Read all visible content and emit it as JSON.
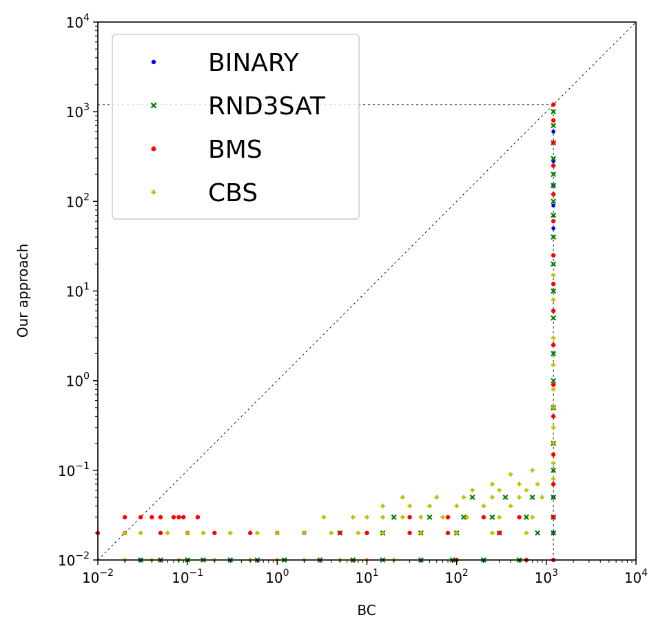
{
  "chart_data": {
    "type": "scatter",
    "title": "",
    "xlabel": "BC",
    "ylabel": "Our approach",
    "xscale": "log",
    "yscale": "log",
    "xlim": [
      0.01,
      10000
    ],
    "ylim": [
      0.01,
      10000
    ],
    "x_ticks": [
      {
        "base": "10",
        "exp": "−2"
      },
      {
        "base": "10",
        "exp": "−1"
      },
      {
        "base": "10",
        "exp": "0"
      },
      {
        "base": "10",
        "exp": "1"
      },
      {
        "base": "10",
        "exp": "2"
      },
      {
        "base": "10",
        "exp": "3"
      },
      {
        "base": "10",
        "exp": "4"
      }
    ],
    "y_ticks": [
      {
        "base": "10",
        "exp": "−2"
      },
      {
        "base": "10",
        "exp": "−1"
      },
      {
        "base": "10",
        "exp": "0"
      },
      {
        "base": "10",
        "exp": "1"
      },
      {
        "base": "10",
        "exp": "2"
      },
      {
        "base": "10",
        "exp": "3"
      },
      {
        "base": "10",
        "exp": "4"
      }
    ],
    "grid": false,
    "legend_position": "top-left",
    "timeout": 1200,
    "series": [
      {
        "name": "BINARY",
        "color": "#0000ff",
        "marker": "dot",
        "points": [
          [
            1200,
            1200
          ],
          [
            1200,
            600
          ],
          [
            1200,
            280
          ],
          [
            1200,
            150
          ],
          [
            1200,
            90
          ],
          [
            1200,
            50
          ],
          [
            1200,
            0.05
          ],
          [
            1200,
            0.03
          ],
          [
            1200,
            0.02
          ]
        ]
      },
      {
        "name": "RND3SAT",
        "color": "#008000",
        "marker": "x",
        "points": [
          [
            0.03,
            0.01
          ],
          [
            0.05,
            0.01
          ],
          [
            0.1,
            0.01
          ],
          [
            0.15,
            0.01
          ],
          [
            0.3,
            0.01
          ],
          [
            0.6,
            0.01
          ],
          [
            1.2,
            0.01
          ],
          [
            3,
            0.01
          ],
          [
            7,
            0.01
          ],
          [
            15,
            0.01
          ],
          [
            40,
            0.01
          ],
          [
            90,
            0.01
          ],
          [
            200,
            0.01
          ],
          [
            500,
            0.01
          ],
          [
            5,
            0.02
          ],
          [
            15,
            0.02
          ],
          [
            40,
            0.02
          ],
          [
            100,
            0.02
          ],
          [
            300,
            0.02
          ],
          [
            800,
            0.02
          ],
          [
            20,
            0.03
          ],
          [
            50,
            0.03
          ],
          [
            120,
            0.03
          ],
          [
            250,
            0.03
          ],
          [
            600,
            0.03
          ],
          [
            150,
            0.05
          ],
          [
            350,
            0.05
          ],
          [
            700,
            0.05
          ],
          [
            1200,
            0.02
          ],
          [
            1200,
            0.03
          ],
          [
            1200,
            0.05
          ],
          [
            1200,
            0.1
          ],
          [
            1200,
            0.2
          ],
          [
            1200,
            0.5
          ],
          [
            1200,
            1
          ],
          [
            1200,
            2
          ],
          [
            1200,
            5
          ],
          [
            1200,
            10
          ],
          [
            1200,
            20
          ],
          [
            1200,
            40
          ],
          [
            1200,
            70
          ],
          [
            1200,
            100
          ],
          [
            1200,
            150
          ],
          [
            1200,
            200
          ],
          [
            1200,
            300
          ],
          [
            1200,
            450
          ],
          [
            1200,
            700
          ],
          [
            1200,
            1000
          ]
        ]
      },
      {
        "name": "BMS",
        "color": "#ff0000",
        "marker": "star",
        "points": [
          [
            0.01,
            0.02
          ],
          [
            0.02,
            0.03
          ],
          [
            0.03,
            0.03
          ],
          [
            0.04,
            0.03
          ],
          [
            0.05,
            0.03
          ],
          [
            0.07,
            0.03
          ],
          [
            0.08,
            0.03
          ],
          [
            0.09,
            0.03
          ],
          [
            0.13,
            0.03
          ],
          [
            0.02,
            0.02
          ],
          [
            0.05,
            0.02
          ],
          [
            0.1,
            0.02
          ],
          [
            0.2,
            0.02
          ],
          [
            0.5,
            0.02
          ],
          [
            1,
            0.02
          ],
          [
            2,
            0.02
          ],
          [
            5,
            0.02
          ],
          [
            10,
            0.02
          ],
          [
            30,
            0.02
          ],
          [
            80,
            0.02
          ],
          [
            300,
            0.02
          ],
          [
            1200,
            0.01
          ],
          [
            600,
            0.01
          ],
          [
            100,
            0.01
          ],
          [
            30,
            0.03
          ],
          [
            80,
            0.03
          ],
          [
            200,
            0.03
          ],
          [
            500,
            0.03
          ],
          [
            1200,
            0.03
          ],
          [
            1200,
            0.07
          ],
          [
            1200,
            0.15
          ],
          [
            1200,
            0.4
          ],
          [
            1200,
            0.9
          ],
          [
            1200,
            2.5
          ],
          [
            1200,
            6
          ],
          [
            1200,
            12
          ],
          [
            1200,
            25
          ],
          [
            1200,
            60
          ],
          [
            1200,
            120
          ],
          [
            1200,
            250
          ],
          [
            1200,
            450
          ],
          [
            1200,
            800
          ],
          [
            1200,
            1200
          ]
        ]
      },
      {
        "name": "CBS",
        "color": "#bfbf00",
        "marker": "plus",
        "points": [
          [
            0.02,
            0.01
          ],
          [
            0.04,
            0.01
          ],
          [
            0.08,
            0.01
          ],
          [
            0.2,
            0.01
          ],
          [
            0.5,
            0.01
          ],
          [
            1,
            0.01
          ],
          [
            2,
            0.01
          ],
          [
            5,
            0.01
          ],
          [
            10,
            0.01
          ],
          [
            20,
            0.01
          ],
          [
            0.02,
            0.02
          ],
          [
            0.03,
            0.02
          ],
          [
            0.06,
            0.02
          ],
          [
            0.1,
            0.02
          ],
          [
            0.15,
            0.02
          ],
          [
            0.3,
            0.02
          ],
          [
            0.6,
            0.02
          ],
          [
            1,
            0.02
          ],
          [
            2,
            0.02
          ],
          [
            4,
            0.02
          ],
          [
            8,
            0.02
          ],
          [
            15,
            0.02
          ],
          [
            40,
            0.02
          ],
          [
            100,
            0.02
          ],
          [
            250,
            0.02
          ],
          [
            600,
            0.02
          ],
          [
            3.3,
            0.03
          ],
          [
            7,
            0.03
          ],
          [
            10,
            0.03
          ],
          [
            15,
            0.03
          ],
          [
            25,
            0.03
          ],
          [
            40,
            0.03
          ],
          [
            70,
            0.03
          ],
          [
            130,
            0.03
          ],
          [
            300,
            0.03
          ],
          [
            700,
            0.03
          ],
          [
            15,
            0.04
          ],
          [
            30,
            0.04
          ],
          [
            50,
            0.04
          ],
          [
            100,
            0.04
          ],
          [
            200,
            0.04
          ],
          [
            400,
            0.04
          ],
          [
            25,
            0.05
          ],
          [
            60,
            0.05
          ],
          [
            120,
            0.05
          ],
          [
            250,
            0.05
          ],
          [
            500,
            0.05
          ],
          [
            900,
            0.05
          ],
          [
            150,
            0.06
          ],
          [
            300,
            0.06
          ],
          [
            600,
            0.06
          ],
          [
            250,
            0.07
          ],
          [
            500,
            0.07
          ],
          [
            800,
            0.07
          ],
          [
            400,
            0.09
          ],
          [
            700,
            0.1
          ],
          [
            1200,
            0.08
          ],
          [
            1200,
            0.12
          ],
          [
            1200,
            0.2
          ],
          [
            1200,
            0.3
          ],
          [
            1200,
            0.5
          ],
          [
            1200,
            0.8
          ],
          [
            1200,
            1.5
          ],
          [
            1200,
            3
          ],
          [
            1200,
            8
          ],
          [
            1200,
            15
          ]
        ]
      }
    ]
  }
}
